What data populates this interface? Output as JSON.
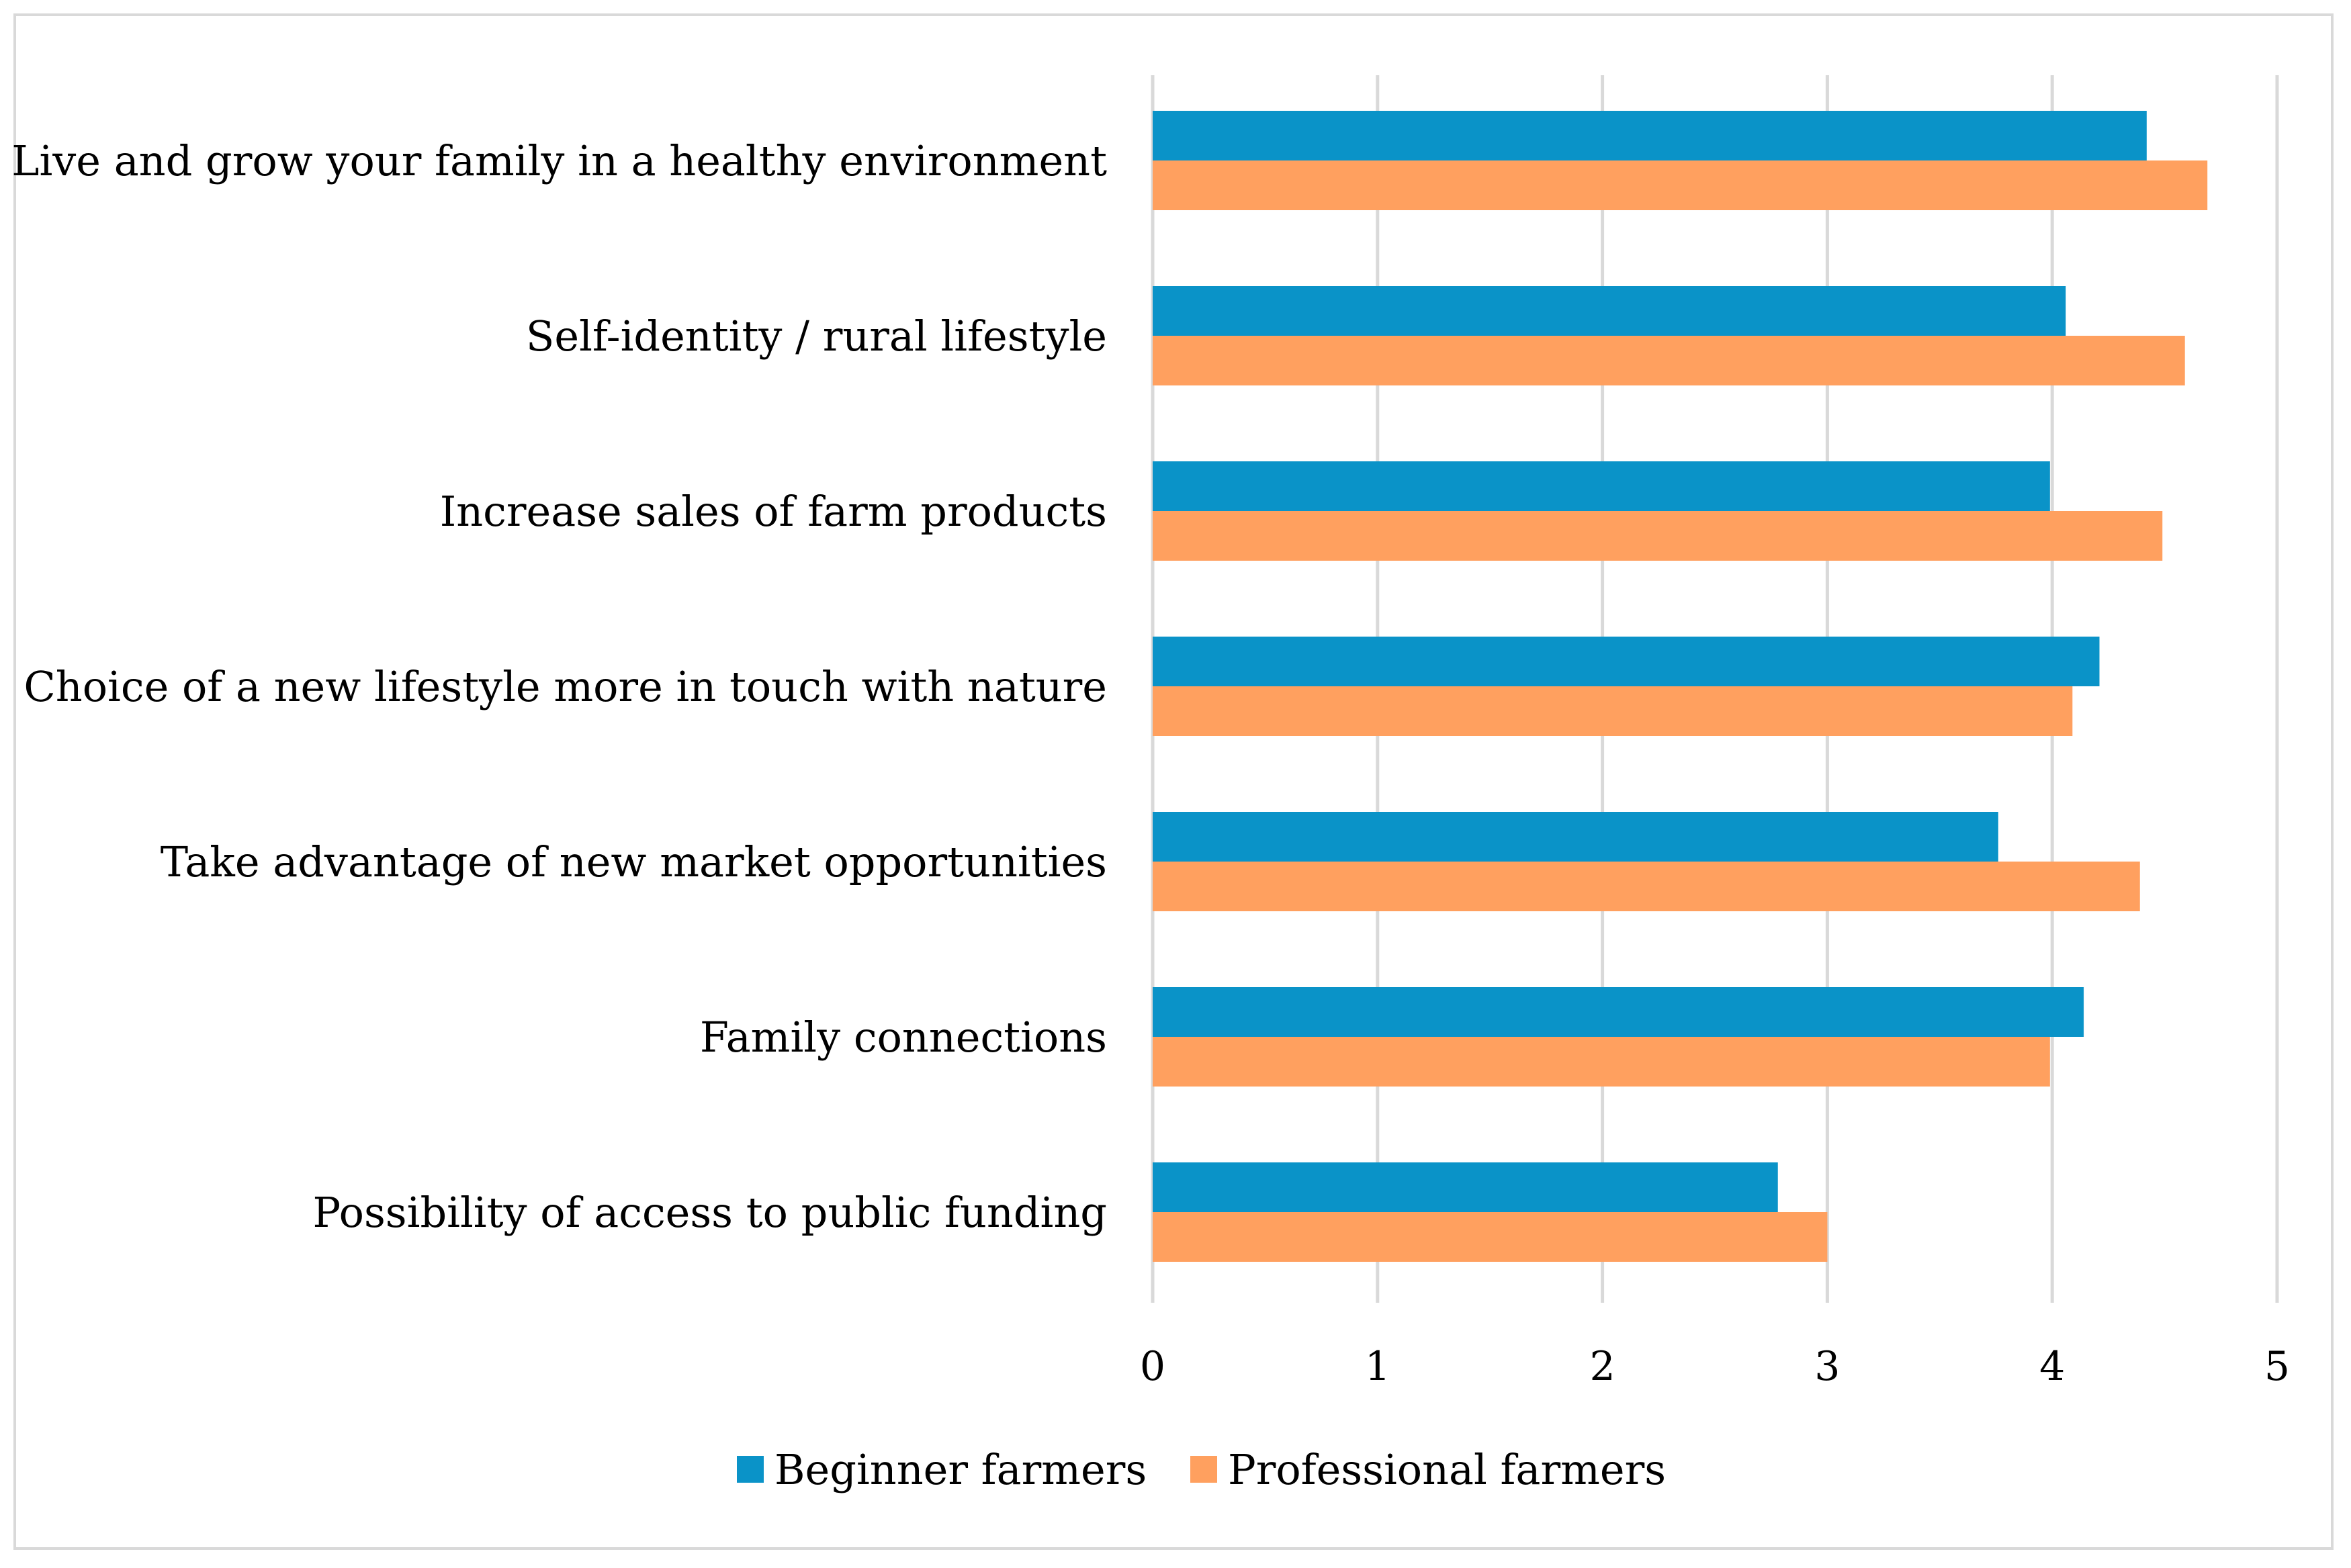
{
  "chart_data": {
    "type": "bar",
    "orientation": "horizontal",
    "title": "",
    "xlabel": "",
    "ylabel": "",
    "xlim": [
      0,
      5
    ],
    "xticks": [
      "0",
      "1",
      "2",
      "3",
      "4",
      "5"
    ],
    "grid": "vertical",
    "legend_position": "bottom",
    "categories": [
      "Live and grow your family in a healthy environment",
      "Self-identity / rural lifestyle",
      "Increase sales of farm products",
      "Choice of a new lifestyle more in touch with nature",
      "Take advantage of new market opportunities",
      "Family connections",
      "Possibility of access to public funding"
    ],
    "series": [
      {
        "name": "Beginner farmers",
        "color": "#0a93c8",
        "values": [
          4.42,
          4.06,
          3.99,
          4.21,
          3.76,
          4.14,
          2.78
        ]
      },
      {
        "name": "Professional farmers",
        "color": "#ffa05f",
        "values": [
          4.69,
          4.59,
          4.49,
          4.09,
          4.39,
          3.99,
          3.0
        ]
      }
    ]
  }
}
